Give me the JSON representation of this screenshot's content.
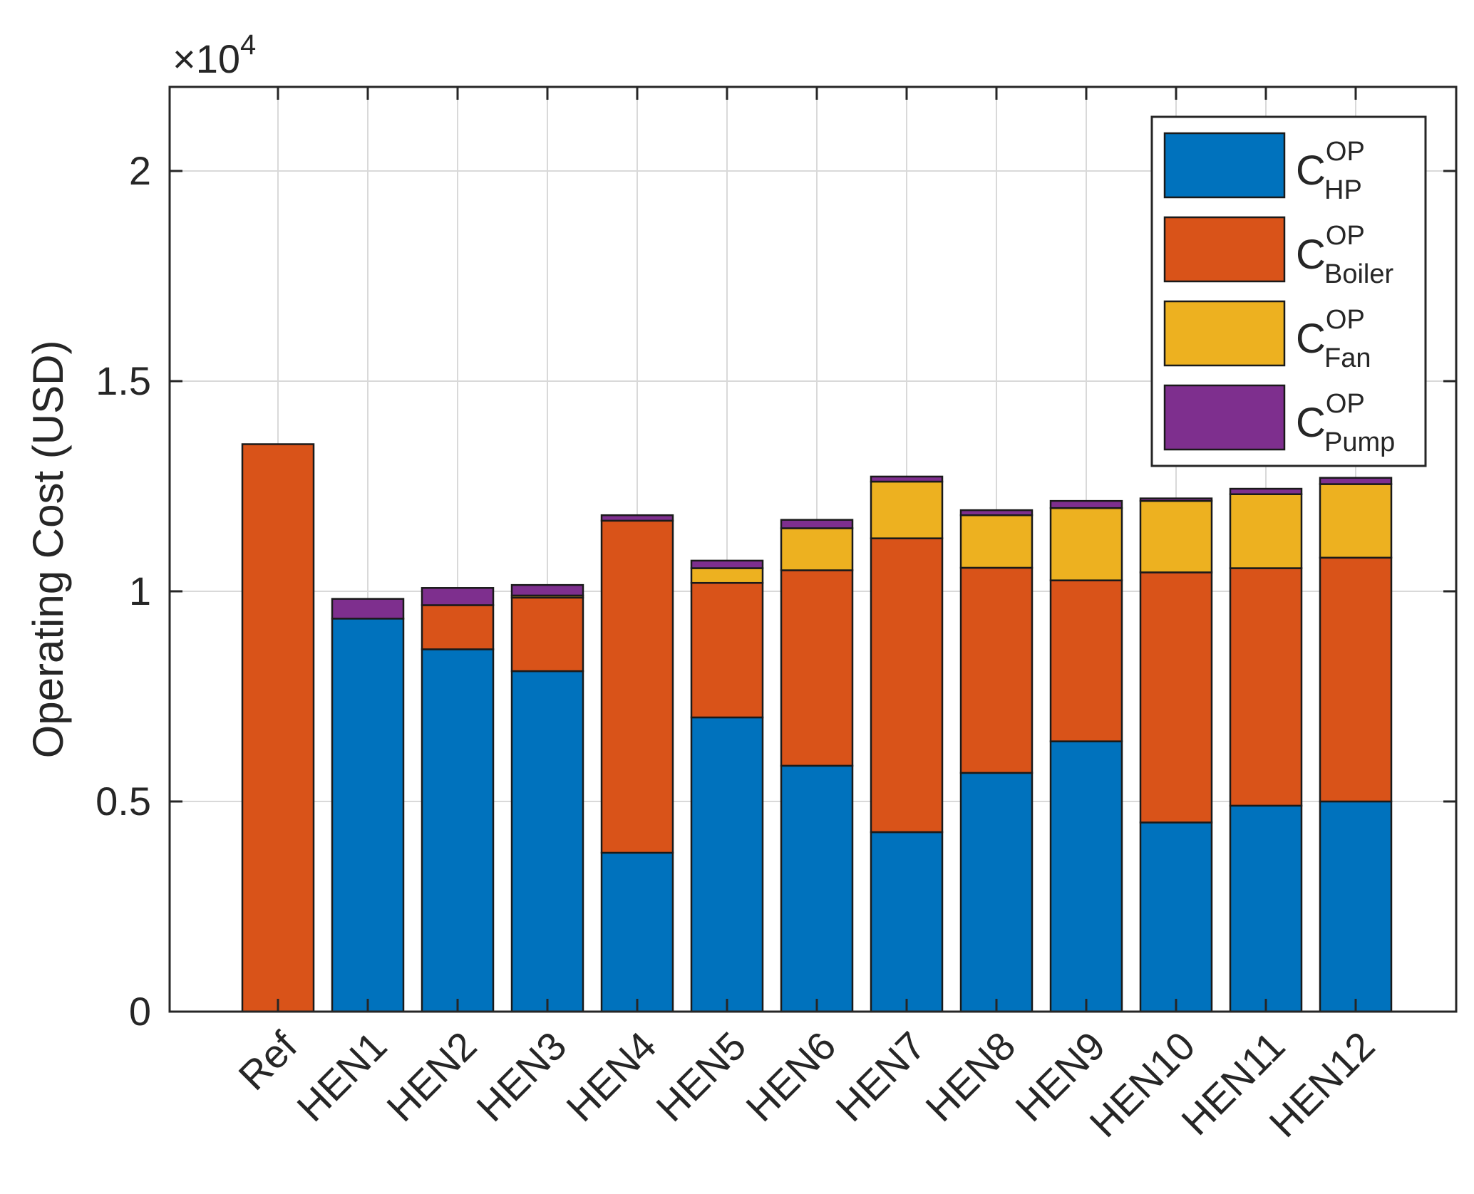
{
  "chart_data": {
    "type": "bar",
    "stacked": true,
    "categories": [
      "Ref",
      "HEN1",
      "HEN2",
      "HEN3",
      "HEN4",
      "HEN5",
      "HEN6",
      "HEN7",
      "HEN8",
      "HEN9",
      "HEN10",
      "HEN11",
      "HEN12"
    ],
    "series": [
      {
        "name": "HP",
        "color": "#0072BD",
        "values": [
          0,
          9350,
          8620,
          8100,
          3780,
          7000,
          5850,
          4270,
          5680,
          6430,
          4500,
          4900,
          5000
        ]
      },
      {
        "name": "Boiler",
        "color": "#D95319",
        "values": [
          13500,
          0,
          1050,
          1750,
          7900,
          3200,
          4650,
          6990,
          4880,
          3830,
          5950,
          5650,
          5800
        ]
      },
      {
        "name": "Fan",
        "color": "#EDB120",
        "values": [
          0,
          0,
          0,
          50,
          0,
          350,
          1000,
          1350,
          1250,
          1720,
          1700,
          1760,
          1750
        ]
      },
      {
        "name": "Pump",
        "color": "#7E2F8E",
        "values": [
          0,
          470,
          410,
          250,
          130,
          180,
          200,
          120,
          120,
          170,
          60,
          130,
          150
        ]
      }
    ],
    "ylabel": "Operating Cost (USD)",
    "ylim": [
      0,
      22000
    ],
    "yticks": [
      0,
      0.5,
      1,
      1.5,
      2
    ],
    "ytick_labels": [
      "0",
      "0.5",
      "1",
      "1.5",
      "2"
    ],
    "y_multiplier": {
      "base": "×10",
      "exponent": "4"
    },
    "grid": true,
    "legend": {
      "position": "top-right",
      "entries": [
        {
          "symbol": "C",
          "sup": "OP",
          "sub": "HP"
        },
        {
          "symbol": "C",
          "sup": "OP",
          "sub": "Boiler"
        },
        {
          "symbol": "C",
          "sup": "OP",
          "sub": "Fan"
        },
        {
          "symbol": "C",
          "sup": "OP",
          "sub": "Pump"
        }
      ]
    }
  }
}
